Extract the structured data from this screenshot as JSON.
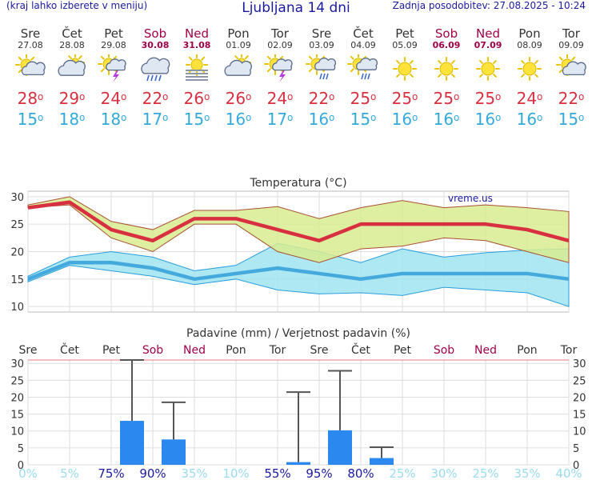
{
  "header": {
    "menu_hint": "(kraj lahko izberete v meniju)",
    "title": "Ljubljana 14 dni",
    "updated": "Zadnja posodobitev: 27.08.2025 - 10:24"
  },
  "days": [
    {
      "name": "Sre",
      "date": "27.08",
      "weekend": false,
      "icon": "partly-sunny-icon",
      "max": "28",
      "min": "15"
    },
    {
      "name": "Čet",
      "date": "28.08",
      "weekend": false,
      "icon": "cloudy-icon",
      "max": "29",
      "min": "18"
    },
    {
      "name": "Pet",
      "date": "29.08",
      "weekend": false,
      "icon": "sun-cloud-lightning-icon",
      "max": "24",
      "min": "18"
    },
    {
      "name": "Sob",
      "date": "30.08",
      "weekend": true,
      "icon": "cloud-rain-icon",
      "max": "22",
      "min": "17"
    },
    {
      "name": "Ned",
      "date": "31.08",
      "weekend": true,
      "icon": "sun-fog-icon",
      "max": "26",
      "min": "15"
    },
    {
      "name": "Pon",
      "date": "01.09",
      "weekend": false,
      "icon": "cloudy-icon",
      "max": "26",
      "min": "16"
    },
    {
      "name": "Tor",
      "date": "02.09",
      "weekend": false,
      "icon": "sun-cloud-lightning-icon",
      "max": "24",
      "min": "17"
    },
    {
      "name": "Sre",
      "date": "03.09",
      "weekend": false,
      "icon": "sun-cloud-rain-icon",
      "max": "22",
      "min": "16"
    },
    {
      "name": "Čet",
      "date": "04.09",
      "weekend": false,
      "icon": "sun-cloud-rain-icon",
      "max": "25",
      "min": "15"
    },
    {
      "name": "Pet",
      "date": "05.09",
      "weekend": false,
      "icon": "sun-icon",
      "max": "25",
      "min": "16"
    },
    {
      "name": "Sob",
      "date": "06.09",
      "weekend": true,
      "icon": "sun-icon",
      "max": "25",
      "min": "16"
    },
    {
      "name": "Ned",
      "date": "07.09",
      "weekend": true,
      "icon": "sun-icon",
      "max": "25",
      "min": "16"
    },
    {
      "name": "Pon",
      "date": "08.09",
      "weekend": false,
      "icon": "sun-icon",
      "max": "24",
      "min": "16"
    },
    {
      "name": "Tor",
      "date": "09.09",
      "weekend": false,
      "icon": "partly-sunny-icon",
      "max": "22",
      "min": "15"
    }
  ],
  "degree_symbol": "o",
  "colors": {
    "max_line": "#d83040",
    "min_line": "#44aadd",
    "max_band": "#d8ec90",
    "min_band": "#a0e4f0",
    "rain_bar": "#2a88ee",
    "weekend": "#a0004a",
    "prob_high": "#1a1aa0",
    "prob_low": "#9adbf0"
  },
  "chart_data": [
    {
      "type": "line",
      "title": "Temperatura (°C)",
      "watermark": "vreme.us",
      "categories": [
        "Sre",
        "Čet",
        "Pet",
        "Sob",
        "Ned",
        "Pon",
        "Tor",
        "Sre",
        "Čet",
        "Pet",
        "Sob",
        "Ned",
        "Pon",
        "Tor"
      ],
      "ylim": [
        9,
        31
      ],
      "yticks": [
        10,
        15,
        20,
        25,
        30
      ],
      "series": [
        {
          "role": "max",
          "values": [
            28,
            29,
            24,
            22,
            26,
            26,
            24,
            22,
            25,
            25,
            25,
            25,
            24,
            22
          ]
        },
        {
          "role": "max_band_high",
          "values": [
            28.5,
            30,
            25.5,
            24,
            27.5,
            27.5,
            28.2,
            26,
            28,
            29.3,
            28,
            28.5,
            28,
            27.3
          ]
        },
        {
          "role": "max_band_low",
          "values": [
            28,
            28.5,
            22.5,
            20,
            25,
            25,
            20,
            18,
            20.5,
            21,
            22.5,
            22,
            20,
            18
          ]
        },
        {
          "role": "min",
          "values": [
            15,
            18,
            18,
            17,
            15,
            16,
            17,
            16,
            15,
            16,
            16,
            16,
            16,
            15
          ]
        },
        {
          "role": "min_band_high",
          "values": [
            15.5,
            19,
            20,
            19,
            16.5,
            17.5,
            21.5,
            20,
            18,
            20.5,
            19,
            19.8,
            20.3,
            20.5
          ]
        },
        {
          "role": "min_band_low",
          "values": [
            14.5,
            17.5,
            16.5,
            15.5,
            14,
            15,
            13,
            12.3,
            12.5,
            12,
            13.5,
            13,
            12.5,
            10
          ]
        }
      ],
      "grid": true
    },
    {
      "type": "bar",
      "title": "Padavine (mm) / Verjetnost padavin (%)",
      "categories": [
        "Sre",
        "Čet",
        "Pet",
        "Sob",
        "Ned",
        "Pon",
        "Tor",
        "Sre",
        "Čet",
        "Pet",
        "Sob",
        "Ned",
        "Pon",
        "Tor"
      ],
      "ylim": [
        0,
        31
      ],
      "yticks": [
        0,
        5,
        10,
        15,
        20,
        25,
        30
      ],
      "values": [
        0,
        0,
        13,
        7.5,
        0,
        0,
        0.8,
        10.2,
        2,
        0,
        0,
        0,
        0,
        0
      ],
      "error_high": [
        null,
        null,
        31,
        18.5,
        null,
        null,
        21.5,
        27.8,
        5.2,
        null,
        null,
        null,
        null,
        null
      ],
      "probabilities": [
        "0%",
        "5%",
        "75%",
        "90%",
        "35%",
        "10%",
        "55%",
        "95%",
        "80%",
        "25%",
        "30%",
        "25%",
        "35%",
        "40%"
      ],
      "grid": true
    }
  ]
}
